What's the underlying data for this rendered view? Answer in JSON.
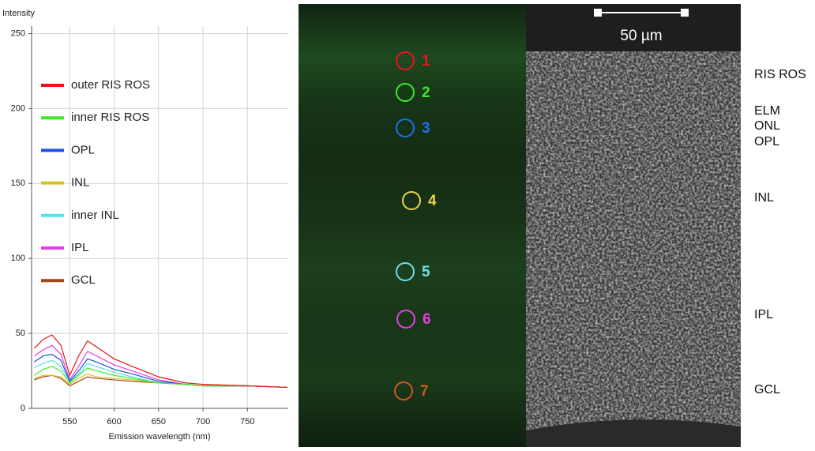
{
  "chart_data": {
    "type": "line",
    "y_label": "Intensity",
    "x_label": "Emission wavelength (nm)",
    "x": [
      510,
      520,
      530,
      540,
      550,
      560,
      570,
      580,
      600,
      620,
      650,
      680,
      700,
      750,
      795
    ],
    "series": [
      {
        "name": "outer RIS ROS",
        "color": "#e8141c",
        "values": [
          40,
          46,
          49,
          42,
          22,
          35,
          45,
          41,
          33,
          28,
          21,
          17,
          16,
          15,
          14
        ]
      },
      {
        "name": "inner RIS ROS",
        "color": "#3ee82a",
        "values": [
          22,
          26,
          28,
          25,
          17,
          22,
          27,
          25,
          22,
          20,
          17,
          16,
          15,
          15,
          14
        ]
      },
      {
        "name": "OPL",
        "color": "#1f4fe0",
        "values": [
          31,
          35,
          36,
          32,
          18,
          25,
          33,
          31,
          26,
          23,
          18,
          16,
          15,
          15,
          14
        ]
      },
      {
        "name": "INL",
        "color": "#d6c21e",
        "values": [
          20,
          22,
          22,
          21,
          16,
          20,
          23,
          21,
          20,
          19,
          17,
          16,
          15,
          15,
          14
        ]
      },
      {
        "name": "inner INL",
        "color": "#4fe3ea",
        "values": [
          27,
          30,
          32,
          28,
          18,
          23,
          30,
          28,
          24,
          21,
          17,
          16,
          15,
          15,
          14
        ]
      },
      {
        "name": "IPL",
        "color": "#e63ee6",
        "values": [
          35,
          39,
          42,
          36,
          19,
          28,
          38,
          35,
          29,
          25,
          19,
          16,
          15,
          15,
          14
        ]
      },
      {
        "name": "GCL",
        "color": "#a5461c",
        "values": [
          19,
          21,
          22,
          20,
          15,
          18,
          21,
          20,
          19,
          18,
          17,
          16,
          15,
          15,
          14
        ]
      }
    ],
    "xlim": [
      507,
      796
    ],
    "xticks": [
      550,
      600,
      650,
      700,
      750
    ],
    "ylim": [
      0,
      255
    ],
    "yticks": [
      0,
      50,
      100,
      150,
      200,
      250
    ],
    "grid": true,
    "legend": "left"
  },
  "fluorescence_image": {
    "markers": [
      {
        "label": "1",
        "color": "#e8141c"
      },
      {
        "label": "2",
        "color": "#3ee82a"
      },
      {
        "label": "3",
        "color": "#1f6fe8"
      },
      {
        "label": "4",
        "color": "#ecd24a"
      },
      {
        "label": "5",
        "color": "#6fe0ee"
      },
      {
        "label": "6",
        "color": "#e63ee6"
      },
      {
        "label": "7",
        "color": "#d2571c"
      }
    ]
  },
  "em_image": {
    "scale_bar": "50 µm",
    "layers": [
      "RIS ROS",
      "ELM",
      "ONL",
      "OPL",
      "INL",
      "IPL",
      "GCL"
    ]
  }
}
